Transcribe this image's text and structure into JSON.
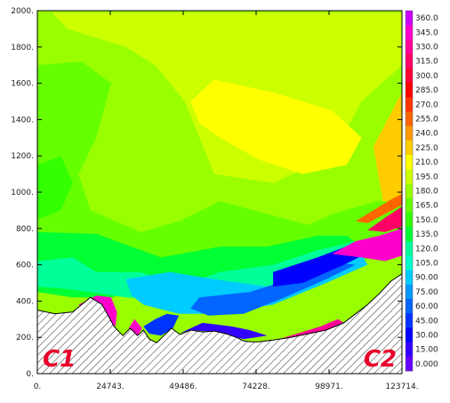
{
  "chart_data": {
    "type": "heatmap",
    "title": "",
    "xlabel": "",
    "ylabel": "",
    "xlim": [
      0,
      123714
    ],
    "ylim": [
      0,
      2000
    ],
    "x_ticks": [
      "0.",
      "24743.",
      "49486.",
      "74228.",
      "98971.",
      "123714."
    ],
    "x_tick_values": [
      0,
      24743,
      49486,
      74228,
      98971,
      123714
    ],
    "y_ticks": [
      "0.",
      "200.",
      "400.",
      "600.",
      "800.",
      "1000.",
      "1200.",
      "1400.",
      "1600.",
      "1800.",
      "2000."
    ],
    "y_tick_values": [
      0,
      200,
      400,
      600,
      800,
      1000,
      1200,
      1400,
      1600,
      1800,
      2000
    ],
    "colorbar": {
      "min": 0,
      "max": 360,
      "step": 15,
      "labels": [
        "360.0",
        "345.0",
        "330.0",
        "315.0",
        "300.0",
        "285.0",
        "270.0",
        "255.0",
        "240.0",
        "225.0",
        "210.0",
        "195.0",
        "180.0",
        "165.0",
        "150.0",
        "135.0",
        "120.0",
        "105.0",
        "90.00",
        "75.00",
        "60.00",
        "45.00",
        "30.00",
        "15.00",
        "0.000"
      ],
      "colors": [
        "#cc00ff",
        "#ff00cc",
        "#ff0099",
        "#ff0066",
        "#ff0033",
        "#ff0000",
        "#ff3300",
        "#ff6600",
        "#ff9900",
        "#ffcc00",
        "#ffff00",
        "#ccff00",
        "#99ff00",
        "#66ff00",
        "#33ff00",
        "#00ff33",
        "#00ff99",
        "#00ffcc",
        "#00ccff",
        "#0099ff",
        "#0066ff",
        "#0033ff",
        "#0000ff",
        "#3300ff",
        "#6600ff"
      ]
    },
    "terrain_profile": {
      "x": [
        0,
        6000,
        12000,
        18000,
        22000,
        26000,
        29000,
        31500,
        34000,
        36000,
        38000,
        40500,
        43000,
        45500,
        48500,
        52000,
        56000,
        60000,
        64000,
        67500,
        70000,
        72500,
        75000,
        80000,
        86000,
        92000,
        98000,
        104000,
        108000,
        112000,
        116000,
        120000,
        123714
      ],
      "y": [
        350,
        330,
        340,
        420,
        380,
        260,
        210,
        250,
        210,
        240,
        190,
        170,
        210,
        250,
        215,
        240,
        230,
        235,
        220,
        200,
        180,
        175,
        175,
        185,
        200,
        220,
        240,
        280,
        330,
        380,
        440,
        510,
        550
      ]
    },
    "regions": [
      {
        "value": 195,
        "polygon": [
          [
            5000,
            1990
          ],
          [
            123714,
            1990
          ],
          [
            123714,
            1700
          ],
          [
            110000,
            1500
          ],
          [
            100000,
            1200
          ],
          [
            80000,
            1050
          ],
          [
            60000,
            1100
          ],
          [
            55000,
            1300
          ],
          [
            50000,
            1500
          ],
          [
            40000,
            1700
          ],
          [
            30000,
            1800
          ],
          [
            20000,
            1850
          ],
          [
            10000,
            1900
          ]
        ]
      },
      {
        "value": 210,
        "polygon": [
          [
            52000,
            1500
          ],
          [
            60000,
            1620
          ],
          [
            80000,
            1550
          ],
          [
            100000,
            1450
          ],
          [
            110000,
            1300
          ],
          [
            105000,
            1150
          ],
          [
            90000,
            1100
          ],
          [
            75000,
            1180
          ],
          [
            62000,
            1300
          ],
          [
            55000,
            1380
          ]
        ]
      },
      {
        "value": 225,
        "polygon": [
          [
            114000,
            1250
          ],
          [
            123714,
            1550
          ],
          [
            123714,
            900
          ],
          [
            118000,
            880
          ]
        ]
      },
      {
        "value": 165,
        "polygon": [
          [
            0,
            1700
          ],
          [
            15000,
            1720
          ],
          [
            25000,
            1600
          ],
          [
            20000,
            1300
          ],
          [
            14000,
            1100
          ],
          [
            18000,
            900
          ],
          [
            35000,
            780
          ],
          [
            48000,
            840
          ],
          [
            62000,
            950
          ],
          [
            78000,
            880
          ],
          [
            92000,
            820
          ],
          [
            100000,
            880
          ],
          [
            115000,
            950
          ],
          [
            123714,
            950
          ],
          [
            123714,
            700
          ],
          [
            100000,
            560
          ],
          [
            80000,
            540
          ],
          [
            60000,
            560
          ],
          [
            42000,
            600
          ],
          [
            28000,
            610
          ],
          [
            15000,
            560
          ],
          [
            0,
            520
          ]
        ]
      },
      {
        "value": 150,
        "polygon": [
          [
            0,
            1150
          ],
          [
            8000,
            1200
          ],
          [
            12000,
            1050
          ],
          [
            8000,
            900
          ],
          [
            0,
            850
          ]
        ]
      },
      {
        "value": 135,
        "polygon": [
          [
            0,
            780
          ],
          [
            20000,
            770
          ],
          [
            42000,
            640
          ],
          [
            62000,
            700
          ],
          [
            78000,
            700
          ],
          [
            95000,
            760
          ],
          [
            105000,
            760
          ],
          [
            110000,
            700
          ],
          [
            95000,
            620
          ],
          [
            75000,
            520
          ],
          [
            55000,
            470
          ],
          [
            38000,
            470
          ],
          [
            25000,
            420
          ],
          [
            12000,
            420
          ],
          [
            0,
            450
          ]
        ]
      },
      {
        "value": 120,
        "polygon": [
          [
            0,
            620
          ],
          [
            12000,
            640
          ],
          [
            20000,
            560
          ],
          [
            35000,
            560
          ],
          [
            48000,
            480
          ],
          [
            62000,
            560
          ],
          [
            80000,
            600
          ],
          [
            95000,
            680
          ],
          [
            108000,
            730
          ],
          [
            112000,
            680
          ],
          [
            100000,
            600
          ],
          [
            80000,
            470
          ],
          [
            62000,
            410
          ],
          [
            48000,
            400
          ],
          [
            30000,
            420
          ],
          [
            18000,
            450
          ],
          [
            8000,
            470
          ],
          [
            0,
            480
          ]
        ]
      },
      {
        "value": 90,
        "polygon": [
          [
            30000,
            520
          ],
          [
            45000,
            560
          ],
          [
            60000,
            520
          ],
          [
            78000,
            480
          ],
          [
            92000,
            560
          ],
          [
            104000,
            640
          ],
          [
            110000,
            660
          ],
          [
            112000,
            600
          ],
          [
            98000,
            500
          ],
          [
            80000,
            380
          ],
          [
            60000,
            330
          ],
          [
            48000,
            330
          ],
          [
            36000,
            380
          ],
          [
            32000,
            430
          ]
        ]
      },
      {
        "value": 60,
        "polygon": [
          [
            55000,
            420
          ],
          [
            72000,
            450
          ],
          [
            90000,
            540
          ],
          [
            102000,
            610
          ],
          [
            108000,
            600
          ],
          [
            98000,
            520
          ],
          [
            84000,
            420
          ],
          [
            70000,
            330
          ],
          [
            58000,
            320
          ],
          [
            52000,
            360
          ]
        ]
      },
      {
        "value": 30,
        "polygon": [
          [
            80000,
            560
          ],
          [
            95000,
            640
          ],
          [
            108000,
            720
          ],
          [
            116000,
            740
          ],
          [
            114000,
            680
          ],
          [
            104000,
            600
          ],
          [
            90000,
            500
          ],
          [
            80000,
            480
          ]
        ]
      },
      {
        "value": 345,
        "polygon": [
          [
            100000,
            660
          ],
          [
            108000,
            730
          ],
          [
            116000,
            760
          ],
          [
            123714,
            800
          ],
          [
            123714,
            650
          ],
          [
            118000,
            620
          ],
          [
            110000,
            640
          ]
        ]
      },
      {
        "value": 315,
        "polygon": [
          [
            112000,
            790
          ],
          [
            118000,
            860
          ],
          [
            123714,
            920
          ],
          [
            123714,
            810
          ],
          [
            118000,
            780
          ]
        ]
      },
      {
        "value": 255,
        "polygon": [
          [
            108000,
            840
          ],
          [
            114000,
            900
          ],
          [
            120000,
            960
          ],
          [
            123714,
            990
          ],
          [
            123714,
            930
          ],
          [
            118000,
            880
          ],
          [
            112000,
            830
          ]
        ]
      },
      {
        "value": 345,
        "polygon": [
          [
            14000,
            380
          ],
          [
            20000,
            430
          ],
          [
            25000,
            420
          ],
          [
            27000,
            340
          ],
          [
            26500,
            260
          ],
          [
            22000,
            320
          ],
          [
            18000,
            350
          ]
        ]
      },
      {
        "value": 345,
        "polygon": [
          [
            31000,
            250
          ],
          [
            33000,
            300
          ],
          [
            35500,
            250
          ],
          [
            34000,
            210
          ]
        ]
      },
      {
        "value": 45,
        "polygon": [
          [
            36000,
            260
          ],
          [
            40000,
            300
          ],
          [
            44000,
            330
          ],
          [
            48000,
            320
          ],
          [
            46000,
            250
          ],
          [
            42000,
            210
          ],
          [
            38000,
            220
          ]
        ]
      },
      {
        "value": 15,
        "polygon": [
          [
            48000,
            220
          ],
          [
            56000,
            280
          ],
          [
            66000,
            260
          ],
          [
            72000,
            240
          ],
          [
            78000,
            210
          ],
          [
            70000,
            190
          ],
          [
            60000,
            230
          ],
          [
            52000,
            240
          ]
        ]
      },
      {
        "value": 330,
        "polygon": [
          [
            80000,
            180
          ],
          [
            88000,
            220
          ],
          [
            96000,
            260
          ],
          [
            102000,
            300
          ],
          [
            104000,
            280
          ],
          [
            96000,
            230
          ],
          [
            88000,
            200
          ],
          [
            82000,
            175
          ]
        ]
      }
    ],
    "annotations": [
      {
        "text": "C1",
        "position": "bottom-left"
      },
      {
        "text": "C2",
        "position": "bottom-right"
      }
    ]
  }
}
